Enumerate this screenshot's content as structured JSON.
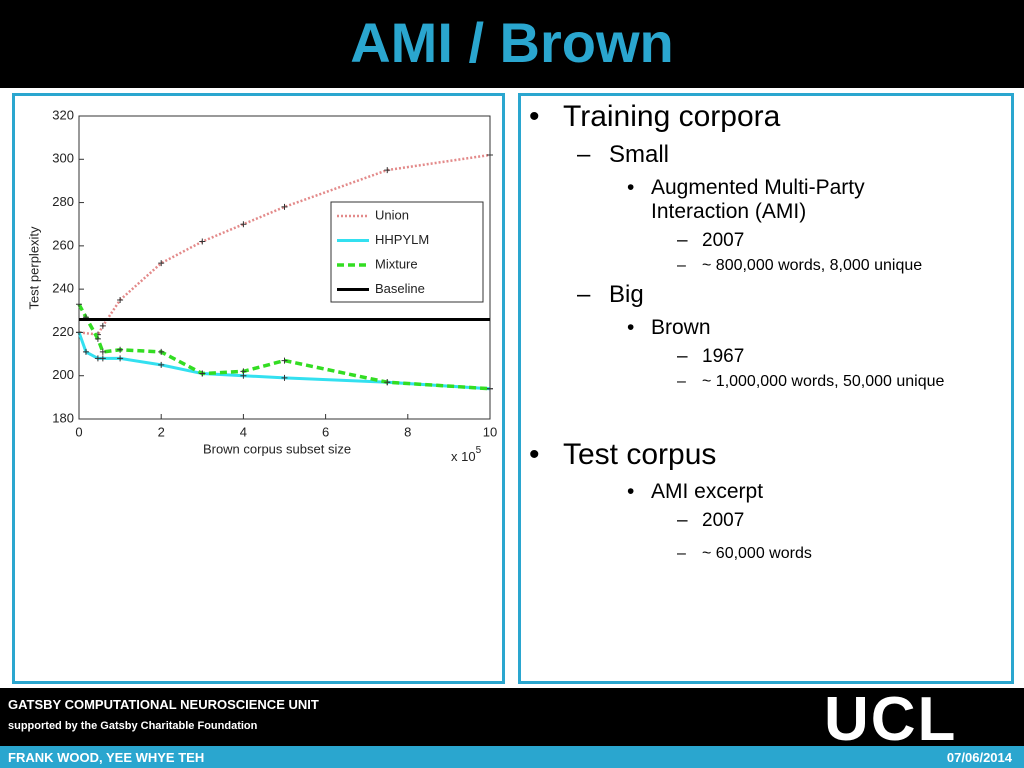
{
  "header": {
    "title": "AMI / Brown"
  },
  "bullets": [
    {
      "marker": "•",
      "text": "Training corpora"
    },
    {
      "marker": "–",
      "text": "Small"
    },
    {
      "marker": "•",
      "text": "Augmented Multi-Party Interaction (AMI)"
    },
    {
      "marker": "–",
      "text": "2007"
    },
    {
      "marker": "–",
      "text": "~ 800,000 words, 8,000 unique"
    },
    {
      "marker": "–",
      "text": "Big"
    },
    {
      "marker": "•",
      "text": "Brown"
    },
    {
      "marker": "–",
      "text": "1967"
    },
    {
      "marker": "–",
      "text": "~ 1,000,000 words, 50,000 unique"
    },
    {
      "marker": "•",
      "text": "Test corpus"
    },
    {
      "marker": "•",
      "text": "AMI excerpt"
    },
    {
      "marker": "–",
      "text": "2007"
    },
    {
      "marker": "–",
      "text": "~ 60,000 words"
    }
  ],
  "footer": {
    "unit": "GATSBY COMPUTATIONAL NEUROSCIENCE UNIT",
    "support": "supported by the Gatsby Charitable Foundation",
    "authors": "FRANK WOOD, YEE WHYE TEH",
    "date": "07/06/2014",
    "logo": "UCL"
  },
  "chart_data": {
    "type": "line",
    "x_label": "Brown corpus subset size",
    "x_multiplier": {
      "base": "x 10",
      "exponent": "5"
    },
    "y_label": "Test perplexity",
    "xlim": [
      0,
      10
    ],
    "xticks": [
      0,
      2,
      4,
      6,
      8,
      10
    ],
    "ylim": [
      180,
      320
    ],
    "yticks": [
      180,
      200,
      220,
      240,
      260,
      280,
      300,
      320
    ],
    "legend": "upper right",
    "series": [
      {
        "name": "Union",
        "color": "#e38a8a",
        "style": "dotted",
        "x": [
          0,
          0.46,
          0.58,
          1,
          2,
          3,
          4,
          5,
          7.5,
          10
        ],
        "values": [
          220,
          219,
          223,
          235,
          252,
          262,
          270,
          278,
          295,
          302
        ]
      },
      {
        "name": "HHPYLM",
        "color": "#33e0f0",
        "style": "solid",
        "x": [
          0,
          0.17,
          0.46,
          0.58,
          1,
          2,
          3,
          4,
          5,
          7.5,
          10
        ],
        "values": [
          220,
          211,
          208,
          208,
          208,
          205,
          201,
          200,
          199,
          197,
          194
        ]
      },
      {
        "name": "Mixture",
        "color": "#33dd22",
        "style": "dashed",
        "x": [
          0,
          0.17,
          0.46,
          0.58,
          1,
          2,
          3,
          4,
          5,
          7.5,
          10
        ],
        "values": [
          233,
          227,
          217,
          211,
          212,
          211,
          201,
          202,
          207,
          197,
          194
        ]
      },
      {
        "name": "Baseline",
        "color": "#000000",
        "style": "solid",
        "x": [
          0,
          10
        ],
        "values": [
          226,
          226
        ]
      }
    ]
  }
}
